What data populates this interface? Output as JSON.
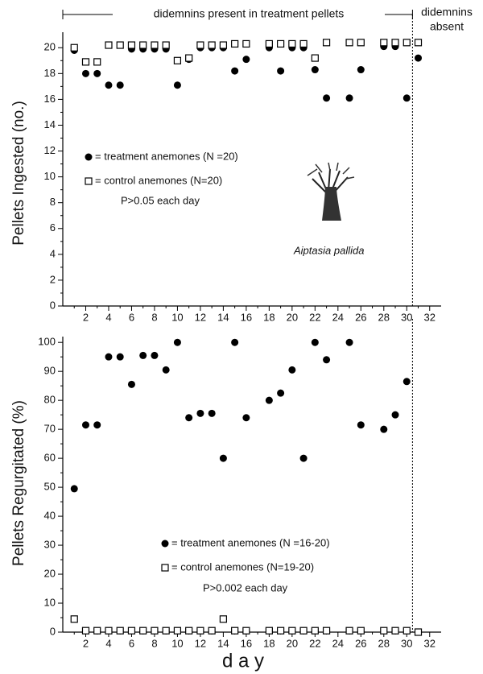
{
  "chart_data": [
    {
      "type": "scatter",
      "ylabel": "Pellets Ingested (no.)",
      "header": "didemnins present in treatment pellets",
      "header_right": [
        "didemnins",
        "absent"
      ],
      "divider_x": 30.5,
      "x": [
        1,
        2,
        3,
        4,
        5,
        6,
        7,
        8,
        9,
        10,
        11,
        12,
        13,
        14,
        15,
        16,
        18,
        19,
        20,
        21,
        22,
        23,
        25,
        26,
        28,
        29,
        30,
        31
      ],
      "series": [
        {
          "name": "= treatment anemones (N =20)",
          "color": "#000000",
          "marker": "circle",
          "values": [
            19.8,
            18,
            18,
            17.1,
            17.1,
            19.9,
            19.9,
            19.9,
            19.9,
            17.1,
            19.1,
            20,
            20,
            20,
            18.2,
            19.1,
            20,
            18.2,
            20,
            20,
            18.3,
            16.1,
            16.1,
            18.3,
            20.1,
            20.1,
            16.1,
            19.2
          ]
        },
        {
          "name": "= control anemones (N=20)",
          "color": "#000000",
          "marker": "square",
          "values": [
            20,
            18.9,
            18.9,
            20.2,
            20.2,
            20.2,
            20.2,
            20.2,
            20.2,
            19,
            19.2,
            20.2,
            20.2,
            20.2,
            20.3,
            20.3,
            20.3,
            20.3,
            20.3,
            20.3,
            19.2,
            20.4,
            20.4,
            20.4,
            20.4,
            20.4,
            20.4,
            20.4
          ]
        }
      ],
      "annotations": [
        "P>0.05 each day",
        "Aiptasia pallida"
      ],
      "xlim": [
        0,
        33
      ],
      "xticks": [
        2,
        4,
        6,
        8,
        10,
        12,
        14,
        16,
        18,
        20,
        22,
        24,
        26,
        28,
        30,
        32
      ],
      "ylim": [
        0,
        21.2
      ],
      "yticks": [
        0,
        2,
        4,
        6,
        8,
        10,
        12,
        14,
        16,
        18,
        20
      ]
    },
    {
      "type": "scatter",
      "ylabel": "Pellets Regurgitated (%)",
      "xlabel": "d a y",
      "divider_x": 30.5,
      "x": [
        1,
        2,
        3,
        4,
        5,
        6,
        7,
        8,
        9,
        10,
        11,
        12,
        13,
        14,
        15,
        16,
        18,
        19,
        20,
        21,
        22,
        23,
        25,
        26,
        28,
        29,
        30,
        31
      ],
      "series": [
        {
          "name": "= treatment anemones (N =16-20)",
          "color": "#000000",
          "marker": "circle",
          "values": [
            49.5,
            71.5,
            71.5,
            95,
            95,
            85.5,
            95.5,
            95.5,
            90.5,
            100,
            74,
            75.5,
            75.5,
            60,
            100,
            74,
            80,
            82.5,
            90.5,
            60,
            100,
            94,
            100,
            71.5,
            70,
            75,
            86.5,
            0
          ]
        },
        {
          "name": "= control anemones (N=19-20)",
          "color": "#000000",
          "marker": "square",
          "values": [
            4.5,
            0.5,
            0.5,
            0.5,
            0.5,
            0.5,
            0.5,
            0.5,
            0.5,
            0.5,
            0.5,
            0.5,
            0.5,
            4.5,
            0.5,
            0.5,
            0.5,
            0.5,
            0.5,
            0.5,
            0.5,
            0.5,
            0.5,
            0.5,
            0.5,
            0.5,
            0.5,
            0
          ]
        }
      ],
      "annotations": [
        "P>0.002 each day"
      ],
      "xlim": [
        0,
        33
      ],
      "xticks": [
        2,
        4,
        6,
        8,
        10,
        12,
        14,
        16,
        18,
        20,
        22,
        24,
        26,
        28,
        30,
        32
      ],
      "ylim": [
        0,
        102
      ],
      "yticks": [
        0,
        10,
        20,
        30,
        40,
        50,
        60,
        70,
        80,
        90,
        100
      ]
    }
  ]
}
